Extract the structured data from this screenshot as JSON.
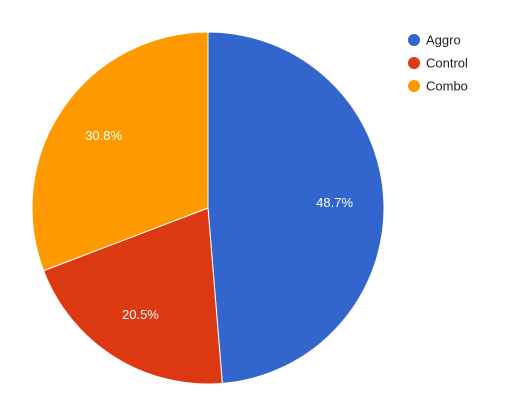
{
  "chart_data": {
    "type": "pie",
    "title": "",
    "slices": [
      {
        "label": "Aggro",
        "value": 48.7,
        "display": "48.7%",
        "color": "#3366cc"
      },
      {
        "label": "Control",
        "value": 20.5,
        "display": "20.5%",
        "color": "#dc3912"
      },
      {
        "label": "Combo",
        "value": 30.8,
        "display": "30.8%",
        "color": "#ff9900"
      }
    ],
    "start_angle": "12 o'clock",
    "direction": "clockwise",
    "legend": {
      "position": "right",
      "items": [
        "Aggro",
        "Control",
        "Combo"
      ]
    }
  }
}
